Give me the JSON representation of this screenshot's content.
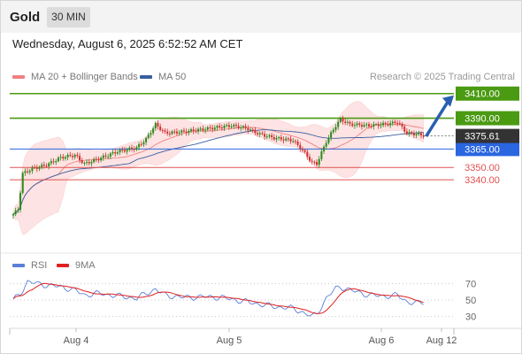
{
  "header": {
    "title": "Gold",
    "timeframe": "30 MIN"
  },
  "datetime": "Wednesday, August 6, 2025 6:52:52 AM CET",
  "legend": {
    "price_items": [
      {
        "label": "MA 20 + Bollinger Bands",
        "color": "#f08080"
      },
      {
        "label": "MA 50",
        "color": "#3a5fa0"
      }
    ],
    "rsi_items": [
      {
        "label": "RSI",
        "color": "#5b7fd8"
      },
      {
        "label": "9MA",
        "color": "#e02020"
      }
    ]
  },
  "credit": "Research © 2025 Trading Central",
  "colors": {
    "resistance": "#4a9a12",
    "support": "#e05050",
    "pivot": "#2a66e0",
    "last": "#333333",
    "arrow": "#2a5fb0"
  },
  "chart_data": [
    {
      "type": "candlestick",
      "instrument": "Gold",
      "timeframe": "30 MIN",
      "x_ticks": [
        "Aug 4",
        "Aug 5",
        "Aug 6",
        "Aug 12"
      ],
      "ylim": [
        3297,
        3417
      ],
      "last_price": "3375.61",
      "levels": [
        {
          "value": 3410,
          "label": "3410.00",
          "kind": "resistance"
        },
        {
          "value": 3390,
          "label": "3390.00",
          "kind": "resistance"
        },
        {
          "value": 3365,
          "label": "3365.00",
          "kind": "pivot"
        },
        {
          "value": 3350,
          "label": "3350.00",
          "kind": "support"
        },
        {
          "value": 3340,
          "label": "3340.00",
          "kind": "support"
        }
      ],
      "close_anchors": [
        [
          0,
          3312
        ],
        [
          2,
          3316
        ],
        [
          4,
          3345
        ],
        [
          8,
          3349
        ],
        [
          14,
          3352
        ],
        [
          20,
          3358
        ],
        [
          26,
          3360
        ],
        [
          30,
          3353
        ],
        [
          36,
          3357
        ],
        [
          44,
          3363
        ],
        [
          52,
          3366
        ],
        [
          56,
          3373
        ],
        [
          60,
          3385
        ],
        [
          64,
          3378
        ],
        [
          72,
          3379
        ],
        [
          80,
          3381
        ],
        [
          88,
          3383
        ],
        [
          92,
          3384
        ],
        [
          98,
          3382
        ],
        [
          104,
          3377
        ],
        [
          110,
          3374
        ],
        [
          118,
          3372
        ],
        [
          122,
          3364
        ],
        [
          126,
          3354
        ],
        [
          128,
          3353
        ],
        [
          132,
          3371
        ],
        [
          136,
          3384
        ],
        [
          138,
          3389
        ],
        [
          142,
          3385
        ],
        [
          150,
          3384
        ],
        [
          156,
          3385
        ],
        [
          160,
          3386
        ],
        [
          162,
          3387
        ],
        [
          166,
          3378
        ],
        [
          170,
          3377
        ],
        [
          173,
          3376
        ]
      ],
      "target_arrow": {
        "from": 3376,
        "to": 3410
      },
      "bollinger_width": 11
    },
    {
      "type": "line",
      "name": "RSI",
      "y_ticks": [
        70,
        50,
        30
      ],
      "ylim": [
        20,
        80
      ],
      "rsi_anchors": [
        [
          0,
          50
        ],
        [
          3,
          58
        ],
        [
          6,
          72
        ],
        [
          10,
          70
        ],
        [
          14,
          68
        ],
        [
          20,
          66
        ],
        [
          26,
          62
        ],
        [
          30,
          56
        ],
        [
          36,
          58
        ],
        [
          44,
          55
        ],
        [
          52,
          52
        ],
        [
          56,
          58
        ],
        [
          60,
          63
        ],
        [
          64,
          56
        ],
        [
          72,
          53
        ],
        [
          80,
          54
        ],
        [
          88,
          53
        ],
        [
          92,
          51
        ],
        [
          98,
          48
        ],
        [
          104,
          45
        ],
        [
          110,
          42
        ],
        [
          118,
          40
        ],
        [
          122,
          35
        ],
        [
          126,
          30
        ],
        [
          128,
          33
        ],
        [
          132,
          52
        ],
        [
          136,
          64
        ],
        [
          138,
          66
        ],
        [
          142,
          62
        ],
        [
          150,
          56
        ],
        [
          156,
          55
        ],
        [
          160,
          55
        ],
        [
          162,
          56
        ],
        [
          166,
          48
        ],
        [
          170,
          46
        ],
        [
          173,
          47
        ]
      ]
    }
  ]
}
